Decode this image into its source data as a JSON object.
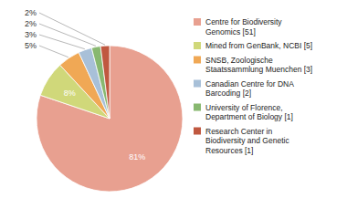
{
  "chart_data": {
    "type": "pie",
    "categories": [
      "Centre for Biodiversity\nGenomics [51]",
      "Mined from GenBank, NCBI [5]",
      "SNSB, Zoologische\nStaatssammlung Muenchen [3]",
      "Canadian Centre for DNA\nBarcoding [2]",
      "University of Florence,\nDepartment of Biology [1]",
      "Research Center in\nBiodiversity and Genetic\nResources [1]"
    ],
    "values": [
      81,
      8,
      5,
      3,
      2,
      2
    ],
    "value_labels": [
      "81%",
      "8%",
      "5%",
      "3%",
      "2%",
      "2%"
    ],
    "colors": [
      "#e8a090",
      "#d0d87a",
      "#f0a855",
      "#a8c0d8",
      "#88b870",
      "#c05840"
    ],
    "data_labels": true,
    "legend": "right"
  }
}
